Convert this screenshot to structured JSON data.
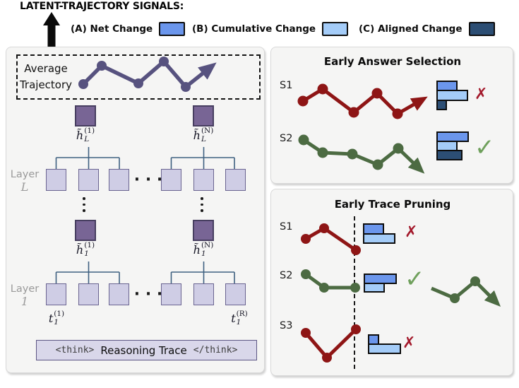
{
  "header": {
    "title": "LATENT-TRAJECTORY SIGNALS:",
    "legend": [
      {
        "label": "(A) Net Change",
        "color": "#6B96EC"
      },
      {
        "label": "(B) Cumulative Change",
        "color": "#A4CCF8"
      },
      {
        "label": "(C) Aligned Change",
        "color": "#2C4E74"
      }
    ]
  },
  "signal_colors": {
    "net": "#6B96EC",
    "cumulative": "#A4CCF8",
    "aligned": "#2C4E74"
  },
  "colors": {
    "average_trajectory": "#57527F",
    "incorrect_trajectory": "#8E1515",
    "correct_trajectory": "#4C6B42",
    "cross_mark": "#A3192B",
    "check_mark": "#6FA05C",
    "hidden_state_square": "#786595",
    "token_square": "#CFCDE5",
    "panel_background": "#F5F5F4"
  },
  "left_panel": {
    "avg_box": {
      "line1": "Average",
      "line2": "Trajectory"
    },
    "hidden_labels": {
      "hL1": {
        "base": "h̃",
        "sup": "(1)",
        "sub": "L"
      },
      "hLN": {
        "base": "h̃",
        "sup": "(N)",
        "sub": "L"
      },
      "h11": {
        "base": "h̃",
        "sup": "(1)",
        "sub": "1"
      },
      "h1N": {
        "base": "h̃",
        "sup": "(N)",
        "sub": "1"
      },
      "t11": {
        "base": "t",
        "sup": "(1)",
        "sub": "1"
      },
      "t1R": {
        "base": "t",
        "sup": "(R)",
        "sub": "1"
      }
    },
    "layer_top": {
      "word": "Layer",
      "index": "L"
    },
    "layer_bottom": {
      "word": "Layer",
      "index": "1"
    },
    "ellipsis": "· · ·",
    "think_box": {
      "open_tag": "<think>",
      "label": "Reasoning Trace",
      "close_tag": "</think>"
    }
  },
  "answer_selection": {
    "title": "Early Answer Selection",
    "rows": [
      {
        "label": "S1",
        "mark": "✗",
        "bars": [
          {
            "signal": "net",
            "width": 30,
            "height": 15
          },
          {
            "signal": "cumulative",
            "width": 45,
            "height": 16
          },
          {
            "signal": "aligned",
            "width": 15,
            "height": 15
          }
        ]
      },
      {
        "label": "S2",
        "mark": "✓",
        "bars": [
          {
            "signal": "net",
            "width": 46,
            "height": 15
          },
          {
            "signal": "cumulative",
            "width": 30,
            "height": 15
          },
          {
            "signal": "aligned",
            "width": 37,
            "height": 15
          }
        ]
      }
    ]
  },
  "trace_pruning": {
    "title": "Early Trace Pruning",
    "rows": [
      {
        "label": "S1",
        "mark": "✗",
        "bars": [
          {
            "signal": "net",
            "width": 30,
            "height": 16
          },
          {
            "signal": "cumulative",
            "width": 46,
            "height": 15
          }
        ]
      },
      {
        "label": "S2",
        "mark": "✓",
        "bars": [
          {
            "signal": "net",
            "width": 47,
            "height": 15
          },
          {
            "signal": "cumulative",
            "width": 30,
            "height": 14
          }
        ]
      },
      {
        "label": "S3",
        "mark": "✗",
        "bars": [
          {
            "signal": "net",
            "width": 16,
            "height": 15
          },
          {
            "signal": "cumulative",
            "width": 47,
            "height": 15
          }
        ]
      }
    ]
  }
}
